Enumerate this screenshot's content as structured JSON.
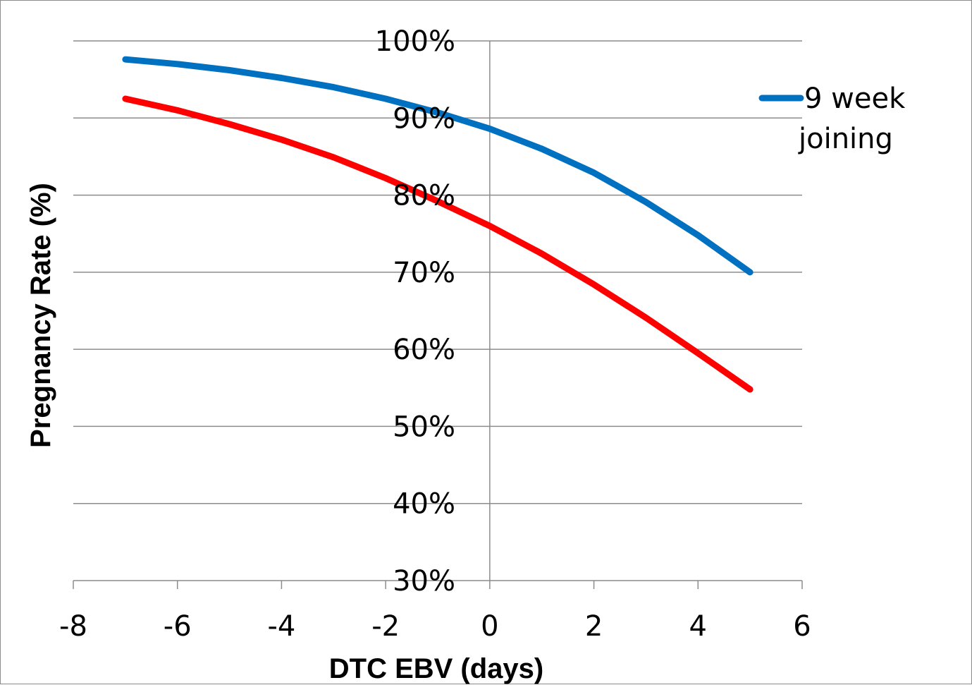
{
  "chart_data": {
    "type": "line",
    "title": "",
    "xlabel": "DTC EBV (days)",
    "ylabel": "Pregnancy Rate (%)",
    "xlim": [
      -8,
      6
    ],
    "ylim": [
      30,
      100
    ],
    "x_ticks": [
      "-8",
      "-6",
      "-4",
      "-2",
      "0",
      "2",
      "4",
      "6"
    ],
    "y_ticks": [
      "30%",
      "40%",
      "50%",
      "60%",
      "70%",
      "80%",
      "90%",
      "100%"
    ],
    "grid": "horizontal",
    "legend_position": "top-right",
    "x": [
      -7,
      -6,
      -5,
      -4,
      -3,
      -2,
      -1,
      0,
      1,
      2,
      3,
      4,
      5
    ],
    "series": [
      {
        "name": "9 week joining",
        "color": "#0070c0",
        "values": [
          97.6,
          97.0,
          96.2,
          95.2,
          94.0,
          92.5,
          90.7,
          88.6,
          86.0,
          82.9,
          79.1,
          74.8,
          70.0
        ]
      },
      {
        "color": "#ff0000",
        "values": [
          92.5,
          91.0,
          89.2,
          87.2,
          84.9,
          82.2,
          79.2,
          76.0,
          72.4,
          68.4,
          64.1,
          59.5,
          54.8
        ]
      }
    ]
  }
}
